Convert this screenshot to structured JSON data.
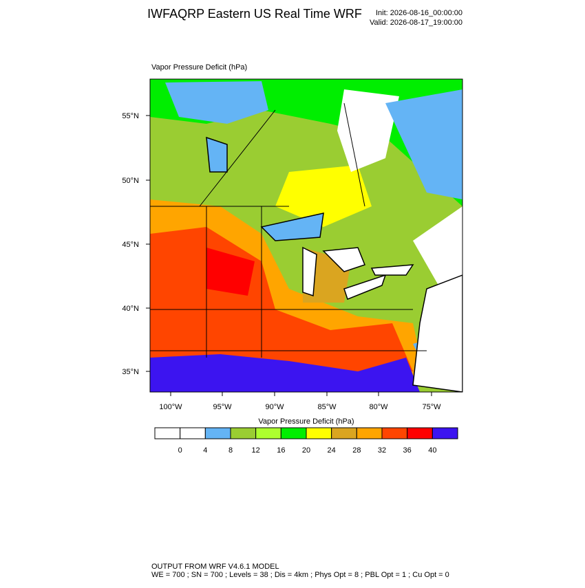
{
  "header": {
    "title": "IWFAQRP Eastern US Real Time WRF",
    "init": "Init: 2026-08-16_00:00:00",
    "valid": "Valid: 2026-08-17_19:00:00"
  },
  "map": {
    "subtitle": "Vapor Pressure Deficit   (hPa)",
    "lat_labels": [
      "55°N",
      "50°N",
      "45°N",
      "40°N",
      "35°N"
    ],
    "lon_labels": [
      "100°W",
      "95°W",
      "90°W",
      "85°W",
      "80°W",
      "75°W"
    ]
  },
  "colorbar": {
    "title": "Vapor Pressure Deficit  (hPa)",
    "colors": [
      "#ffffff",
      "#ffffff",
      "#64b4f5",
      "#9acd32",
      "#adff2f",
      "#00ee00",
      "#ffff00",
      "#daa520",
      "#ffa500",
      "#ff4500",
      "#ff0000",
      "#3c14f0"
    ],
    "levels": [
      0,
      4,
      8,
      12,
      16,
      20,
      24,
      28,
      32,
      36,
      40
    ]
  },
  "footer": {
    "line1": "OUTPUT FROM WRF V4.6.1 MODEL",
    "line2": "WE = 700 ; SN = 700 ; Levels = 38 ; Dis = 4km ; Phys Opt = 8 ; PBL Opt = 1 ; Cu Opt = 0"
  }
}
